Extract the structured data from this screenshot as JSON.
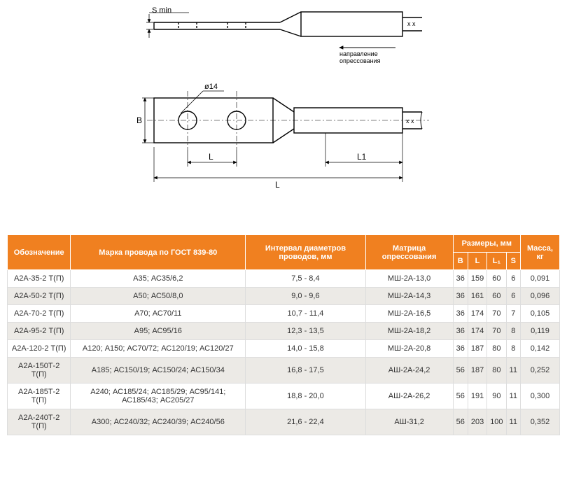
{
  "diagram": {
    "type": "technical-drawing",
    "labels": {
      "s_min": "S min",
      "direction1": "направление",
      "direction2": "опрессования",
      "diameter": "ø14",
      "B": "В",
      "L_small": "L",
      "L1": "L1",
      "L_big": "L"
    },
    "stroke_color": "#000000",
    "stroke_width": 1.5,
    "fill": "#ffffff"
  },
  "table": {
    "header_bg": "#f08020",
    "header_fg": "#ffffff",
    "row_odd_bg": "#ffffff",
    "row_even_bg": "#eceae6",
    "columns_group": "Размеры, мм",
    "columns": [
      "Обозначение",
      "Марка провода по ГОСТ 839-80",
      "Интервал диаметров проводов, мм",
      "Матрица опрессования",
      "B",
      "L",
      "L₁",
      "S",
      "Масса, кг"
    ],
    "rows": [
      [
        "А2А-35-2 Т(П)",
        "А35; АС35/6,2",
        "7,5 - 8,4",
        "МШ-2А-13,0",
        "36",
        "159",
        "60",
        "6",
        "0,091"
      ],
      [
        "А2А-50-2 Т(П)",
        "А50; АС50/8,0",
        "9,0 - 9,6",
        "МШ-2А-14,3",
        "36",
        "161",
        "60",
        "6",
        "0,096"
      ],
      [
        "А2А-70-2 Т(П)",
        "А70; АС70/11",
        "10,7 - 11,4",
        "МШ-2А-16,5",
        "36",
        "174",
        "70",
        "7",
        "0,105"
      ],
      [
        "А2А-95-2 Т(П)",
        "А95; АС95/16",
        "12,3 - 13,5",
        "МШ-2А-18,2",
        "36",
        "174",
        "70",
        "8",
        "0,119"
      ],
      [
        "А2А-120-2 Т(П)",
        "А120; А150; АС70/72; АС120/19; АС120/27",
        "14,0 - 15,8",
        "МШ-2А-20,8",
        "36",
        "187",
        "80",
        "8",
        "0,142"
      ],
      [
        "А2А-150Т-2 Т(П)",
        "А185; АС150/19; АС150/24; АС150/34",
        "16,8 - 17,5",
        "АШ-2А-24,2",
        "56",
        "187",
        "80",
        "11",
        "0,252"
      ],
      [
        "А2А-185Т-2 Т(П)",
        "А240; АС185/24; АС185/29; АС95/141; АС185/43; АС205/27",
        "18,8 - 20,0",
        "АШ-2А-26,2",
        "56",
        "191",
        "90",
        "11",
        "0,300"
      ],
      [
        "А2А-240Т-2 Т(П)",
        "А300; АС240/32; АС240/39; АС240/56",
        "21,6 - 22,4",
        "АШ-31,2",
        "56",
        "203",
        "100",
        "11",
        "0,352"
      ]
    ]
  }
}
